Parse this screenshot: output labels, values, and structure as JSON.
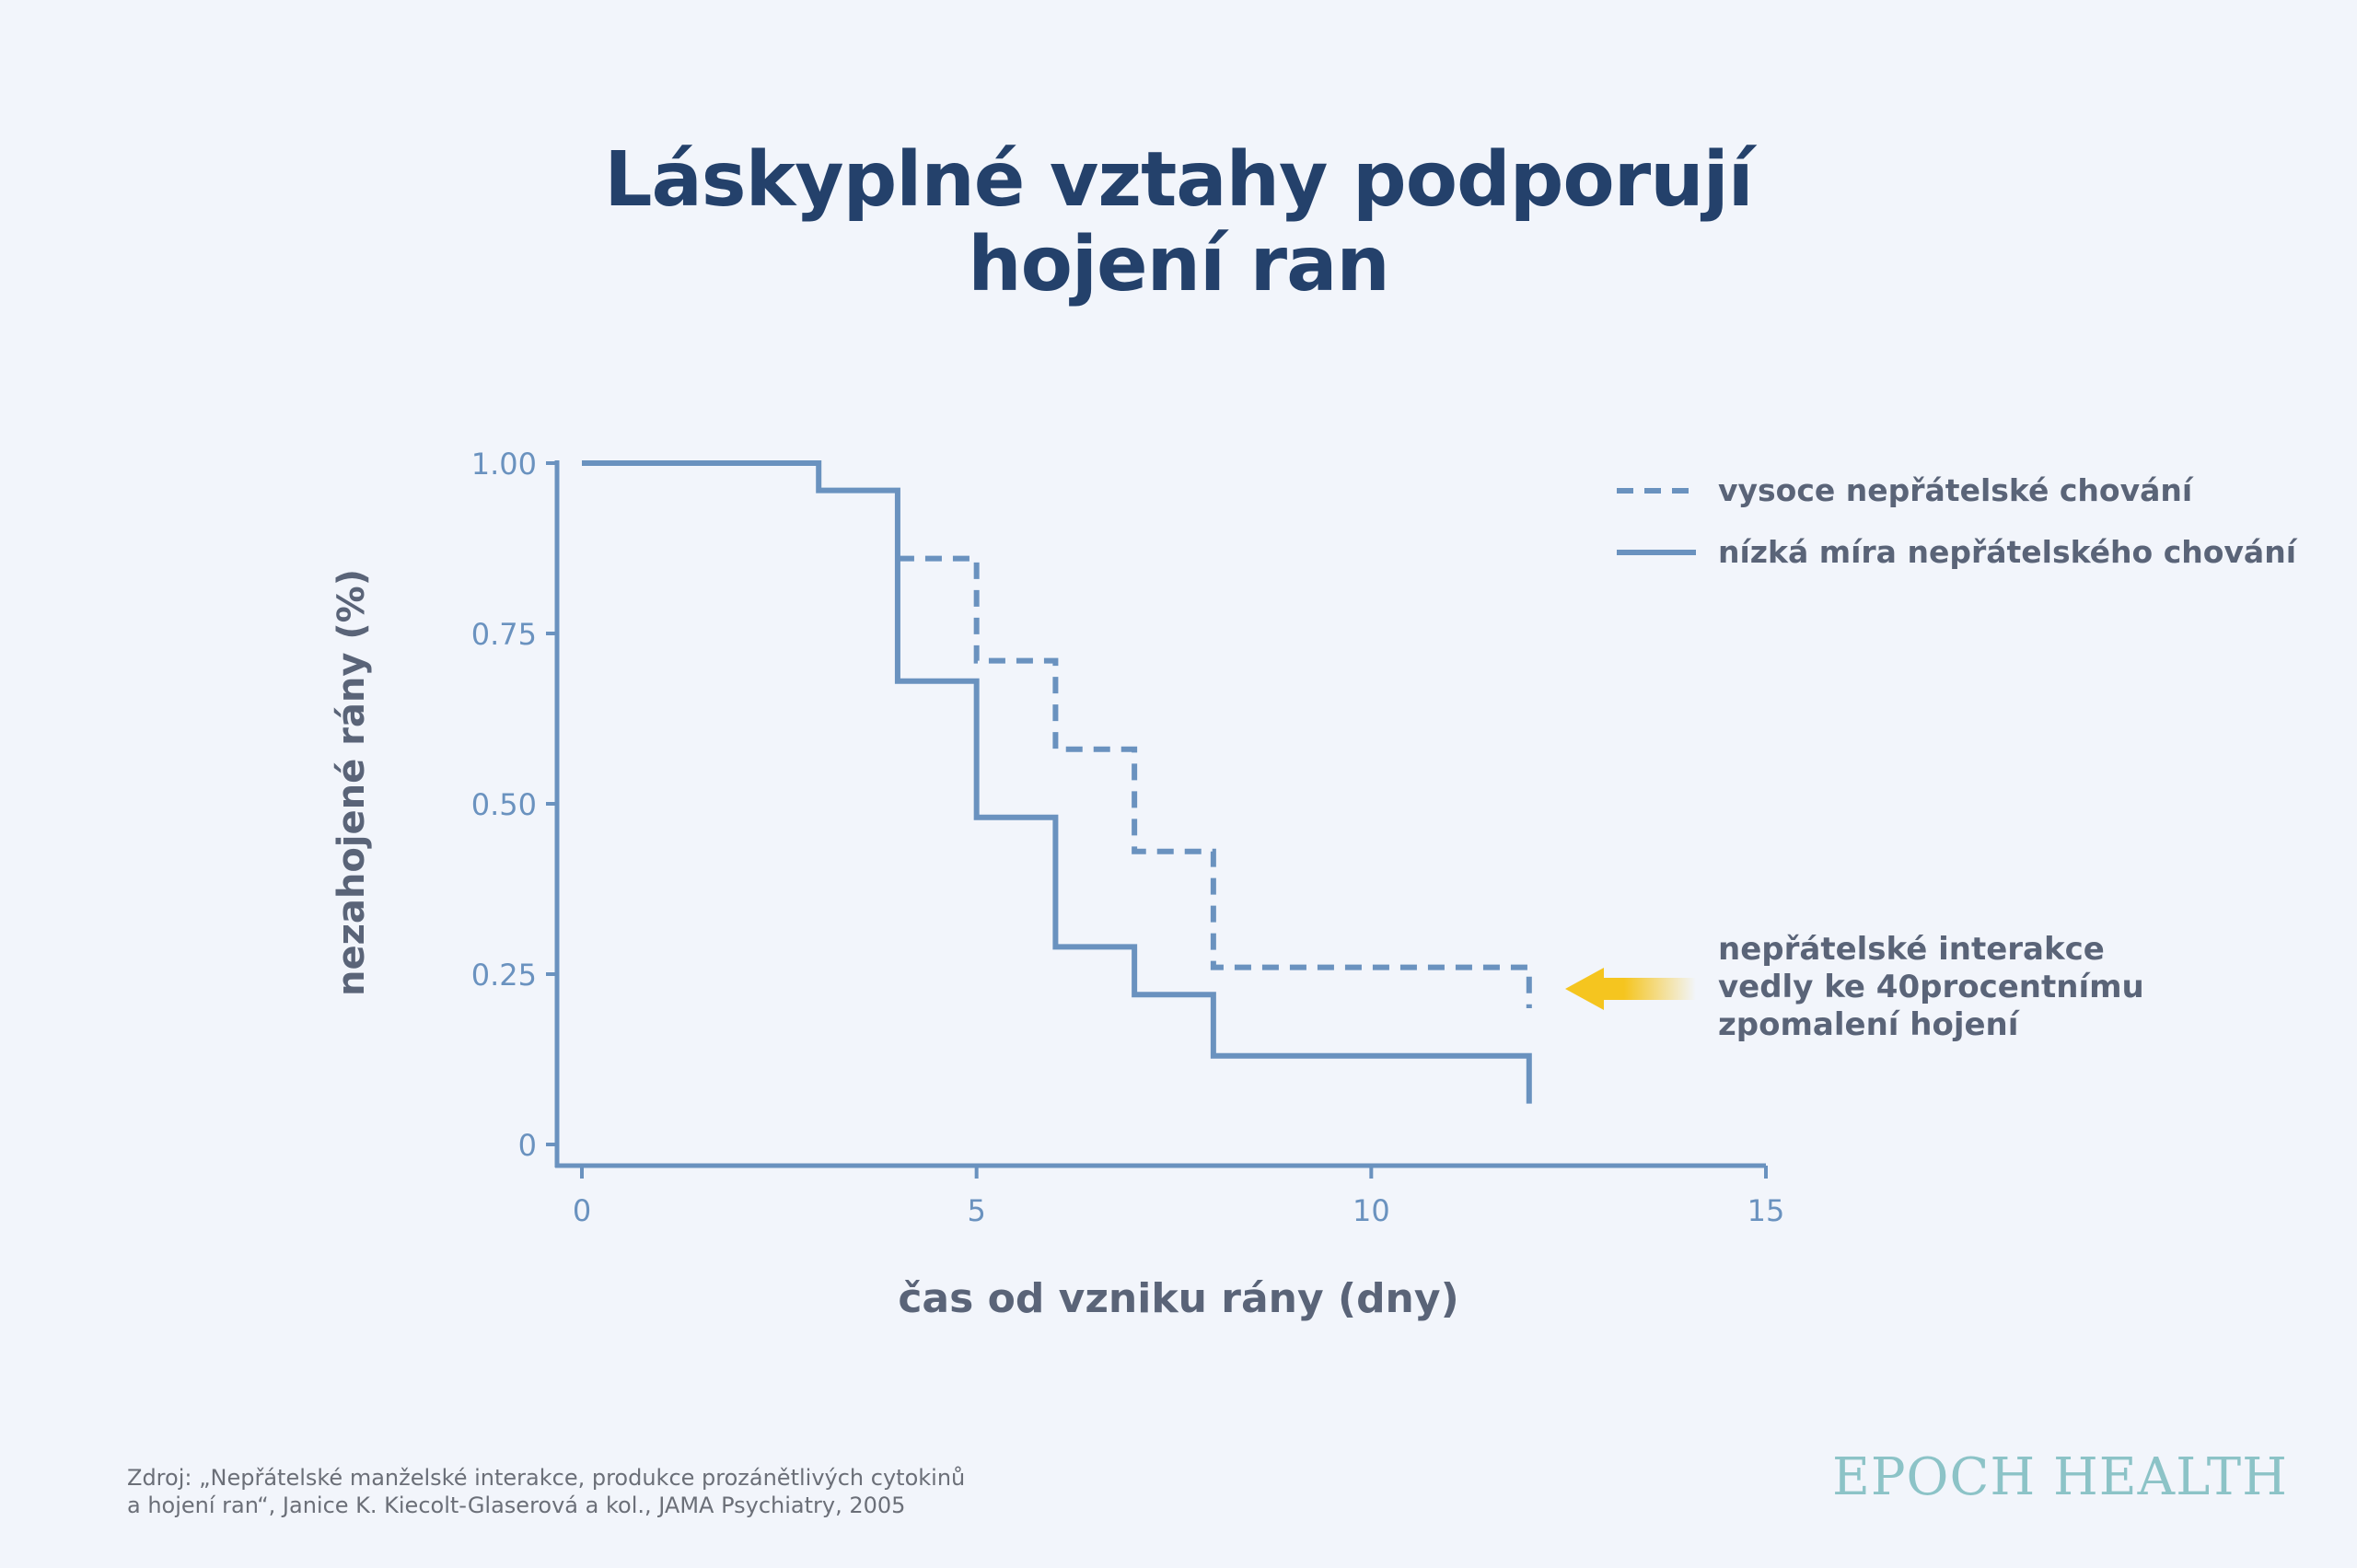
{
  "title": {
    "line1": "Láskyplné vztahy podporují",
    "line2": "hojení ran"
  },
  "chart_data": {
    "type": "line",
    "step": true,
    "xlabel": "čas od vzniku rány (dny)",
    "ylabel": "nezahojené rány (%)",
    "xlim": [
      0,
      15
    ],
    "ylim": [
      0,
      1
    ],
    "x_ticks": [
      0,
      5,
      10,
      15
    ],
    "x_tick_labels": [
      "0",
      "5",
      "10",
      "15"
    ],
    "y_ticks": [
      1,
      0.75,
      0.5,
      0.25,
      0
    ],
    "y_tick_labels": [
      "1.00",
      "0.75",
      "0.50",
      "0.25",
      "0"
    ],
    "grid": false,
    "legend_position": "top-right",
    "series": [
      {
        "name": "vysoce nepřátelské chování",
        "style": "dashed",
        "color": "#6a92bf",
        "x": [
          4,
          5,
          5,
          6,
          6,
          7,
          7,
          8,
          8,
          12,
          12
        ],
        "y": [
          0.86,
          0.86,
          0.71,
          0.71,
          0.58,
          0.58,
          0.43,
          0.43,
          0.26,
          0.26,
          0.2
        ]
      },
      {
        "name": "nízká míra nepřátelského chování",
        "style": "solid",
        "color": "#6a92bf",
        "x": [
          0,
          3,
          3,
          4,
          4,
          5,
          5,
          6,
          6,
          7,
          7,
          8,
          8,
          12,
          12
        ],
        "y": [
          1.0,
          1.0,
          0.96,
          0.96,
          0.68,
          0.68,
          0.48,
          0.48,
          0.29,
          0.29,
          0.22,
          0.22,
          0.13,
          0.13,
          0.06
        ]
      }
    ],
    "annotation": {
      "lines": [
        "nepřátelské interakce",
        "vedly ke 40procentnímu",
        "zpomalení hojení"
      ],
      "arrow_color": "#f5c51f"
    }
  },
  "source": {
    "line1": "Zdroj: „Nepřátelské manželské interakce, produkce prozánětlivých cytokinů",
    "line2": "a hojení ran“, Janice K. Kiecolt-Glaserová a kol., JAMA Psychiatry, 2005"
  },
  "logo": "EPOCH HEALTH",
  "colors": {
    "background": "#f2f5fb",
    "title": "#24416b",
    "axis": "#6a92bf",
    "label": "#5a6478",
    "logo": "#8cc3c7"
  }
}
